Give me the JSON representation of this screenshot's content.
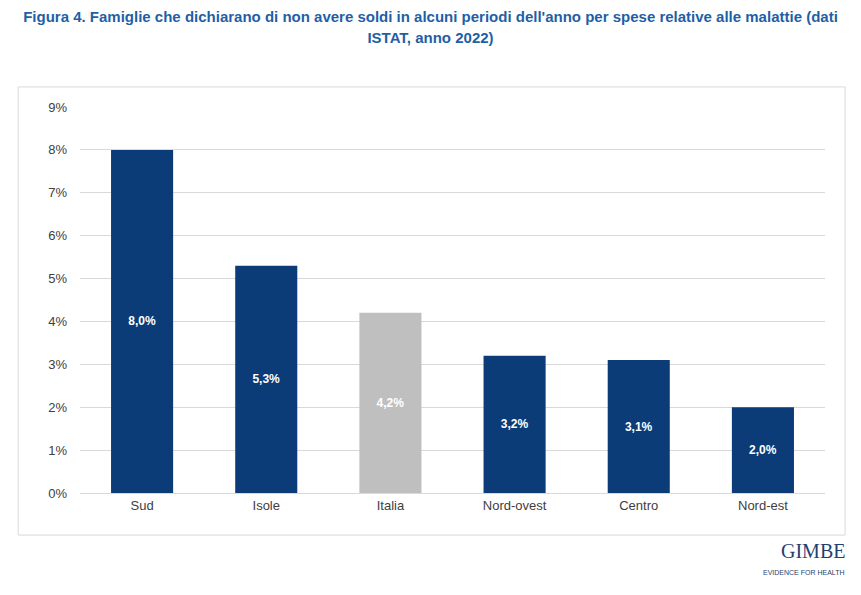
{
  "chart_data": {
    "type": "bar",
    "title": "Figura 4. Famiglie che dichiarano di non avere soldi in alcuni periodi dell'anno per spese relative alle malattie (dati ISTAT, anno 2022)",
    "categories": [
      "Sud",
      "Isole",
      "Italia",
      "Nord-ovest",
      "Centro",
      "Nord-est"
    ],
    "values": [
      8.0,
      5.3,
      4.2,
      3.2,
      3.1,
      2.0
    ],
    "value_labels": [
      "8,0%",
      "5,3%",
      "4,2%",
      "3,2%",
      "3,1%",
      "2,0%"
    ],
    "colors": [
      "#0b3c78",
      "#0b3c78",
      "#bfbfbf",
      "#0b3c78",
      "#0b3c78",
      "#0b3c78"
    ],
    "ylim": [
      0,
      9
    ],
    "yticks": [
      {
        "value": 0,
        "label": "0%"
      },
      {
        "value": 1,
        "label": "1%"
      },
      {
        "value": 2,
        "label": "2%"
      },
      {
        "value": 3,
        "label": "3%"
      },
      {
        "value": 4,
        "label": "4%"
      },
      {
        "value": 5,
        "label": "5%"
      },
      {
        "value": 6,
        "label": "6%"
      },
      {
        "value": 7,
        "label": "7%"
      },
      {
        "value": 8,
        "label": "8%"
      },
      {
        "value": 9,
        "label": "9%"
      }
    ],
    "grid": true,
    "data_labels": true,
    "annotations": [
      "GIMBE",
      "EVIDENCE FOR HEALTH"
    ]
  }
}
